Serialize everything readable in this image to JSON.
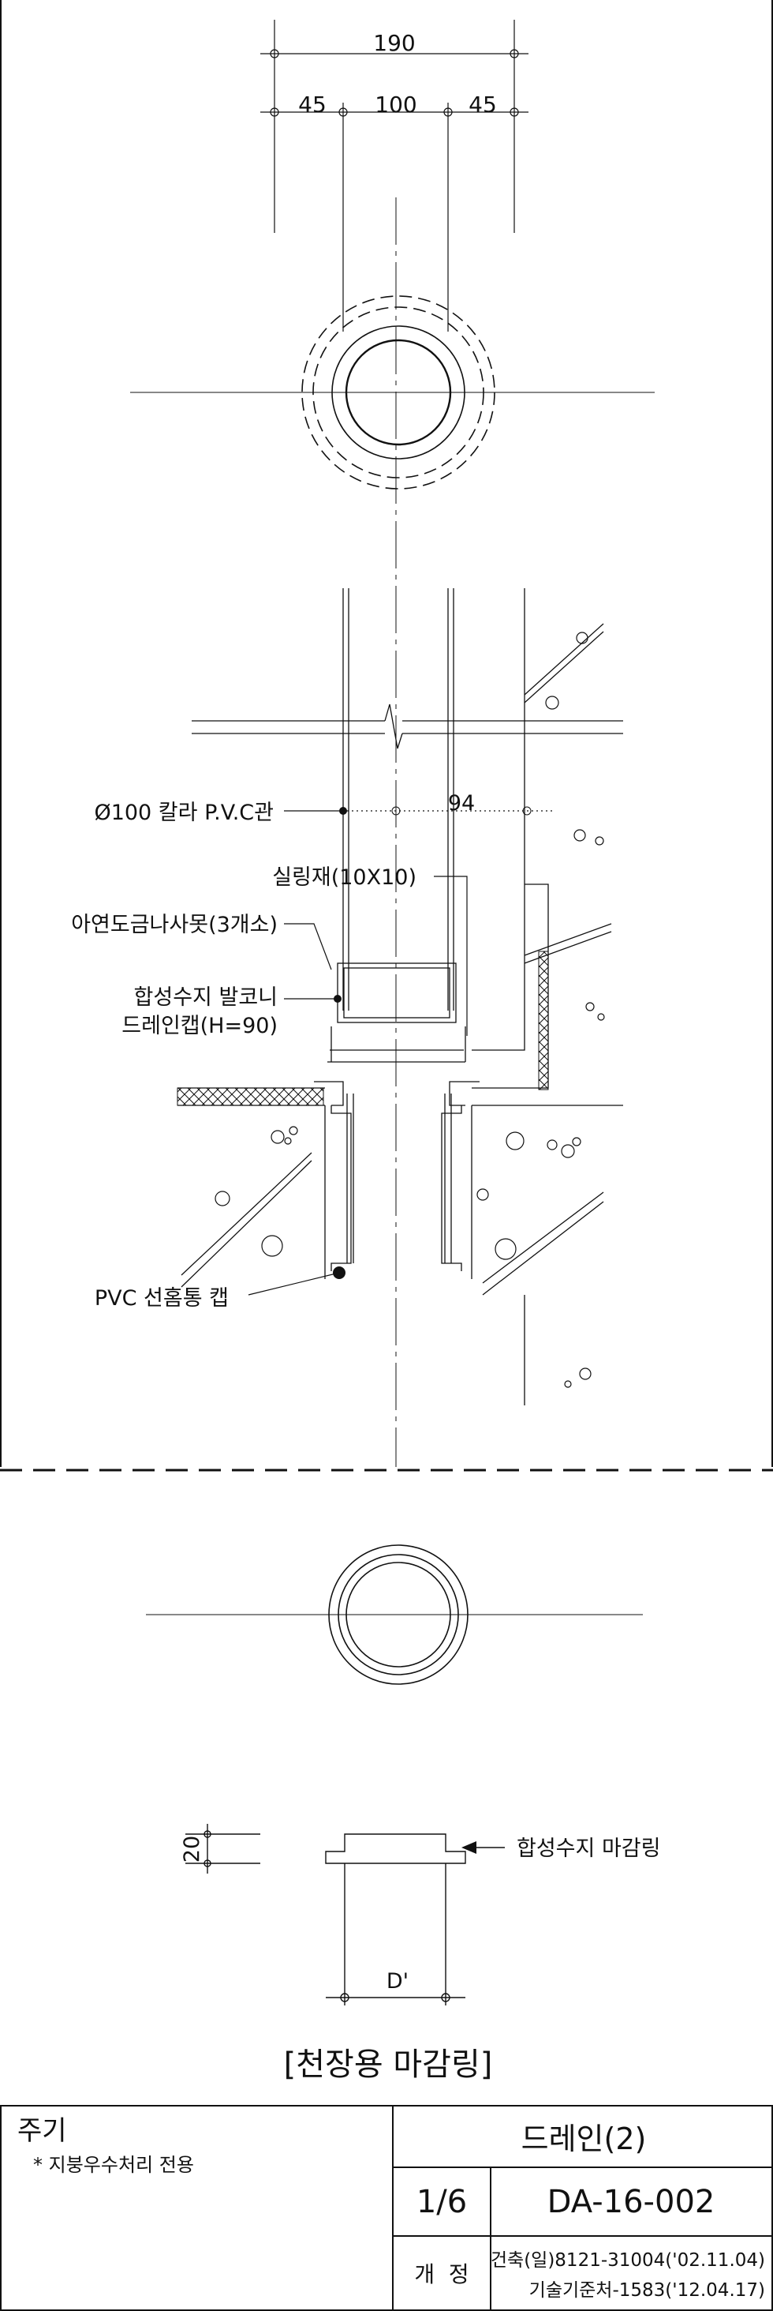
{
  "dimensions": {
    "total": "190",
    "left": "45",
    "center": "100",
    "right": "45",
    "pipe_offset": "94",
    "ring_height": "20",
    "ring_diameter": "D'"
  },
  "callouts": {
    "pvc_pipe": "Ø100 칼라 P.V.C관",
    "sealant": "실링재(10X10)",
    "screws": "아연도금나사못(3개소)",
    "drain_cap_line1": "합성수지 발코니",
    "drain_cap_line2": "드레인캡(H=90)",
    "gutter_cap": "PVC 선홈통 캡",
    "finish_ring": "합성수지 마감링"
  },
  "section_title": "[천장용 마감링]",
  "title_block": {
    "notes_heading": "주기",
    "note": "* 지붕우수처리 전용",
    "drawing_name": "드레인(2)",
    "sheet": "1/6",
    "drawing_number": "DA-16-002",
    "revision_label": "개  정",
    "revision_line1": "건축(일)8121-31004('02.11.04)",
    "revision_line2": "기술기준처-1583('12.04.17)"
  }
}
